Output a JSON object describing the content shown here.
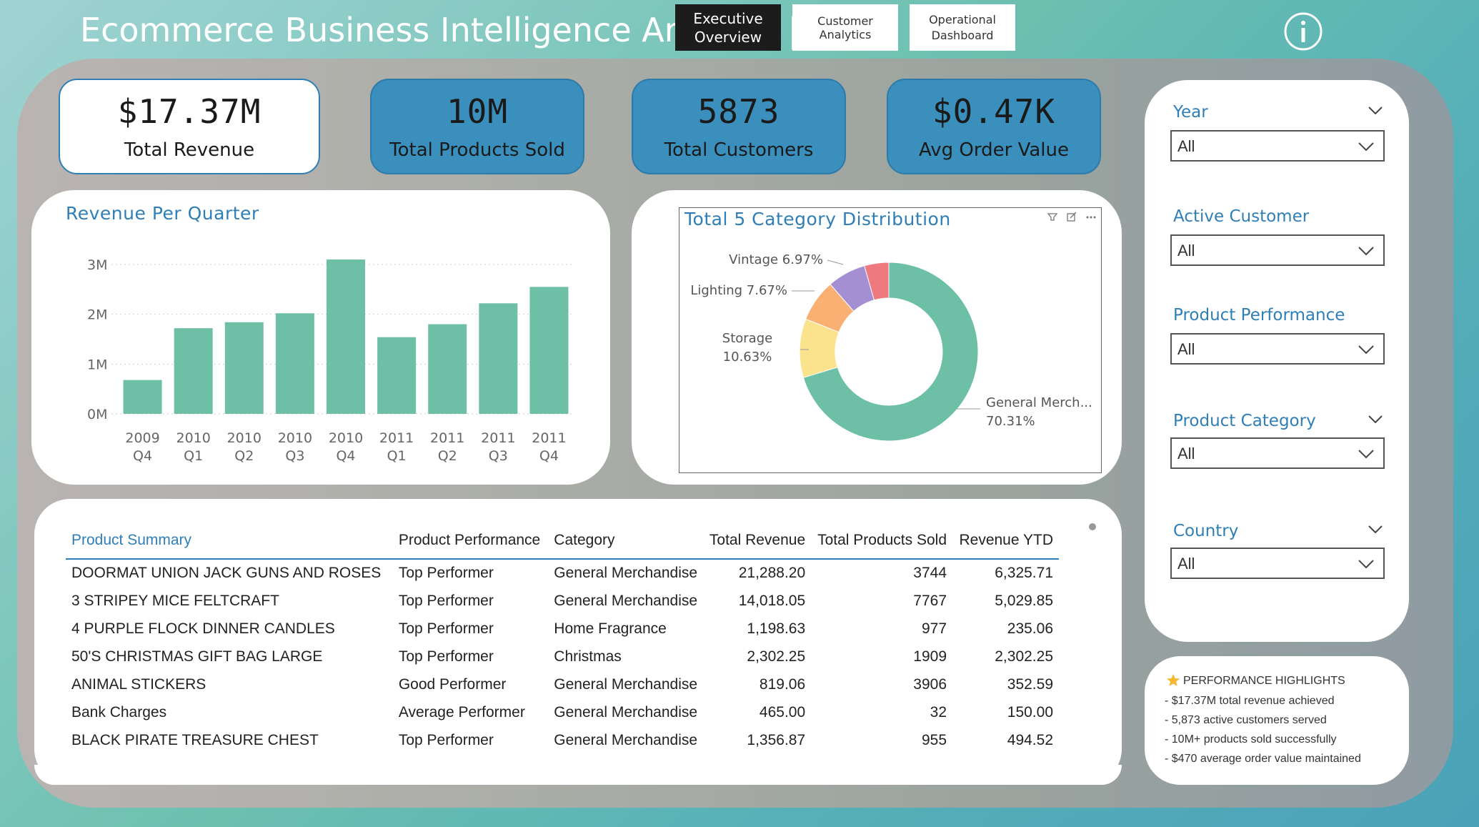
{
  "header": {
    "title": "Ecommerce Business Intelligence Analysis |",
    "nav": {
      "executive": "Executive\nOverview",
      "customer": "Customer Analytics",
      "operational": "Operational\nDashboard"
    }
  },
  "kpis": [
    {
      "value": "$17.37M",
      "label": "Total Revenue"
    },
    {
      "value": "10M",
      "label": "Total Products Sold"
    },
    {
      "value": "5873",
      "label": "Total Customers"
    },
    {
      "value": "$0.47K",
      "label": "Avg Order Value"
    }
  ],
  "bar_chart_title": "Revenue Per Quarter",
  "donut_chart_title": "Total 5 Category Distribution",
  "chart_data": [
    {
      "type": "bar",
      "title": "Revenue Per Quarter",
      "categories": [
        "2009 Q4",
        "2010 Q1",
        "2010 Q2",
        "2010 Q3",
        "2010 Q4",
        "2011 Q1",
        "2011 Q2",
        "2011 Q3",
        "2011 Q4"
      ],
      "category_lines": [
        [
          "2009",
          "Q4"
        ],
        [
          "2010",
          "Q1"
        ],
        [
          "2010",
          "Q2"
        ],
        [
          "2010",
          "Q3"
        ],
        [
          "2010",
          "Q4"
        ],
        [
          "2011",
          "Q1"
        ],
        [
          "2011",
          "Q2"
        ],
        [
          "2011",
          "Q3"
        ],
        [
          "2011",
          "Q4"
        ]
      ],
      "values": [
        0.68,
        1.72,
        1.84,
        2.02,
        3.1,
        1.54,
        1.8,
        2.22,
        2.55
      ],
      "y_unit": "M",
      "yticks": [
        "0M",
        "1M",
        "2M",
        "3M"
      ],
      "ylim": [
        0,
        3.0
      ],
      "grid": true,
      "color": "#6dbfa6"
    },
    {
      "type": "pie",
      "title": "Total 5 Category Distribution",
      "donut": true,
      "slices": [
        {
          "label": "General Merch...",
          "pct": "70.31%",
          "value": 70.31,
          "color": "#6dbfa6"
        },
        {
          "label": "Storage",
          "pct": "10.63%",
          "value": 10.63,
          "color": "#fbe38e"
        },
        {
          "label": "Lighting",
          "pct": "7.67%",
          "value": 7.67,
          "color": "#fbb073"
        },
        {
          "label": "Vintage",
          "pct": "6.97%",
          "value": 6.97,
          "color": "#a48fd3"
        },
        {
          "label": "",
          "pct": "",
          "value": 4.42,
          "color": "#ee7a7f"
        }
      ]
    }
  ],
  "table": {
    "headers": [
      "Product Summary",
      "Product Performance",
      "Category",
      "Total Revenue",
      "Total Products Sold",
      "Revenue YTD"
    ],
    "rows": [
      [
        "DOORMAT UNION JACK GUNS AND ROSES",
        "Top Performer",
        "General Merchandise",
        "21,288.20",
        "3744",
        "6,325.71"
      ],
      [
        "3 STRIPEY MICE FELTCRAFT",
        "Top Performer",
        "General Merchandise",
        "14,018.05",
        "7767",
        "5,029.85"
      ],
      [
        "4 PURPLE FLOCK DINNER CANDLES",
        "Top Performer",
        "Home Fragrance",
        "1,198.63",
        "977",
        "235.06"
      ],
      [
        "50'S CHRISTMAS GIFT BAG LARGE",
        "Top Performer",
        "Christmas",
        "2,302.25",
        "1909",
        "2,302.25"
      ],
      [
        "ANIMAL STICKERS",
        "Good Performer",
        "General Merchandise",
        "819.06",
        "3906",
        "352.59"
      ],
      [
        "Bank Charges",
        "Average Performer",
        "General Merchandise",
        "465.00",
        "32",
        "150.00"
      ],
      [
        "BLACK PIRATE TREASURE CHEST",
        "Top Performer",
        "General Merchandise",
        "1,356.87",
        "955",
        "494.52"
      ]
    ]
  },
  "filters": [
    {
      "label": "Year",
      "value": "All"
    },
    {
      "label": "Active Customer",
      "value": "All"
    },
    {
      "label": "Product Performance",
      "value": "All"
    },
    {
      "label": "Product Category",
      "value": "All"
    },
    {
      "label": "Country",
      "value": "All"
    }
  ],
  "highlights": {
    "title": "PERFORMANCE HIGHLIGHTS",
    "items": [
      "- $17.37M total revenue achieved",
      "- 5,873 active customers served",
      "- 10M+ products sold successfully",
      "- $470 average order value maintained"
    ]
  }
}
